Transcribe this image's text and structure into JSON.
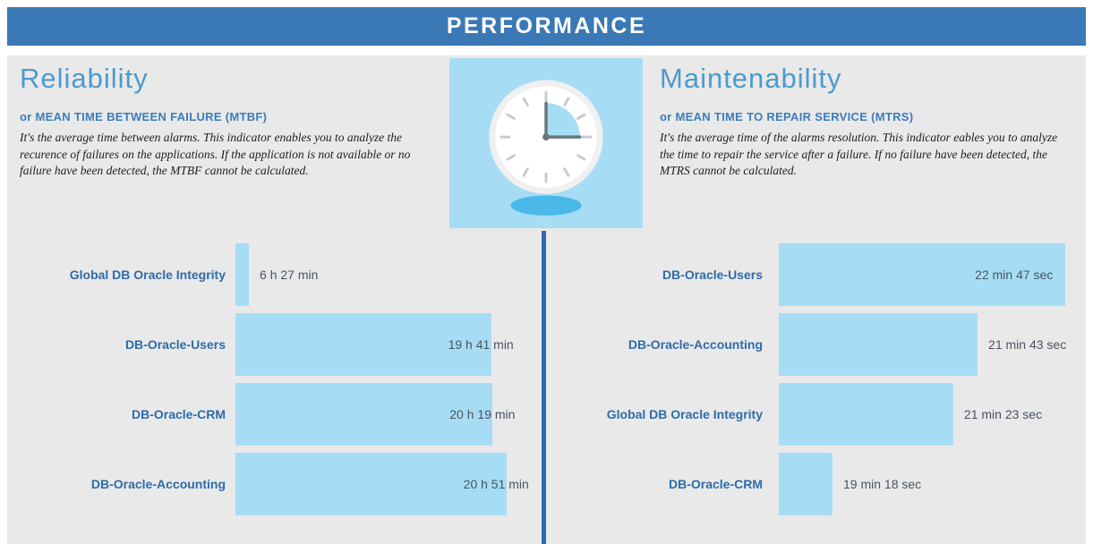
{
  "header": {
    "title": "PERFORMANCE"
  },
  "colors": {
    "header_bg": "#3a79b5",
    "panel_bg": "#e9e9e9",
    "bar": "#a6ddf5",
    "accent": "#2d6ca9",
    "title": "#4c9ace",
    "subtitle": "#3b7dba",
    "value_text": "#4a5360",
    "shadow_blue": "#4ab9e8"
  },
  "left_section": {
    "title": "Reliability",
    "subtitle": "or MEAN TIME BETWEEN FAILURE (MTBF)",
    "description": "It's the average time between alarms. This indicator enables you to analyze the recurence of failures on the applications. If the application is not available or no failure have been detected, the MTBF cannot be calculated."
  },
  "right_section": {
    "title": "Maintenability",
    "subtitle": "or MEAN TIME TO REPAIR SERVICE (MTRS)",
    "description": "It's the average time of the alarms resolution. This indicator eables you to analyze the time to repair the service after a failure. If no failure have been detected, the MTRS cannot be calculated."
  },
  "clock_icon": {
    "name": "clock-icon"
  },
  "chart_data": [
    {
      "type": "bar",
      "orientation": "horizontal",
      "title": "Reliability — Mean Time Between Failure (MTBF)",
      "unit": "hours and minutes",
      "categories": [
        "Global DB Oracle Integrity",
        "DB-Oracle-Users",
        "DB-Oracle-CRM",
        "DB-Oracle-Accounting"
      ],
      "values_label": [
        "6 h 27 min",
        "19 h 41 min",
        "20 h 19 min",
        "20 h 51 min"
      ],
      "values_minutes": [
        387,
        1181,
        1219,
        1251
      ],
      "rows": [
        {
          "label": "Global DB Oracle Integrity",
          "value_label": "6 h 27 min",
          "value_minutes": 387,
          "bar_pct": 4.4,
          "value_mode": "after"
        },
        {
          "label": "DB-Oracle-Users",
          "value_label": "19 h 41 min",
          "value_minutes": 1181,
          "bar_pct": 83.5,
          "value_mode": "overlap"
        },
        {
          "label": "DB-Oracle-CRM",
          "value_label": "20 h 19 min",
          "value_minutes": 1219,
          "bar_pct": 84,
          "value_mode": "overlap"
        },
        {
          "label": "DB-Oracle-Accounting",
          "value_label": "20 h 51 min",
          "value_minutes": 1251,
          "bar_pct": 88.5,
          "value_mode": "overlap"
        }
      ]
    },
    {
      "type": "bar",
      "orientation": "horizontal",
      "title": "Maintenability — Mean Time To Repair Service (MTRS)",
      "unit": "minutes and seconds",
      "categories": [
        "DB-Oracle-Users",
        "DB-Oracle-Accounting",
        "Global DB Oracle Integrity",
        "DB-Oracle-CRM"
      ],
      "values_label": [
        "22 min 47 sec",
        "21 min 43 sec",
        "21 min 23 sec",
        "19 min 18 sec"
      ],
      "values_seconds": [
        1367,
        1303,
        1283,
        1158
      ],
      "rows": [
        {
          "label": "DB-Oracle-Users",
          "value_label": "22 min 47 sec",
          "value_seconds": 1367,
          "bar_pct": 94.5,
          "value_mode": "inside"
        },
        {
          "label": "DB-Oracle-Accounting",
          "value_label": "21 min 43 sec",
          "value_seconds": 1303,
          "bar_pct": 65.5,
          "value_mode": "after"
        },
        {
          "label": "Global DB Oracle Integrity",
          "value_label": "21 min 23 sec",
          "value_seconds": 1283,
          "bar_pct": 57.5,
          "value_mode": "after"
        },
        {
          "label": "DB-Oracle-CRM",
          "value_label": "19 min 18 sec",
          "value_seconds": 1158,
          "bar_pct": 17.7,
          "value_mode": "after"
        }
      ]
    }
  ]
}
